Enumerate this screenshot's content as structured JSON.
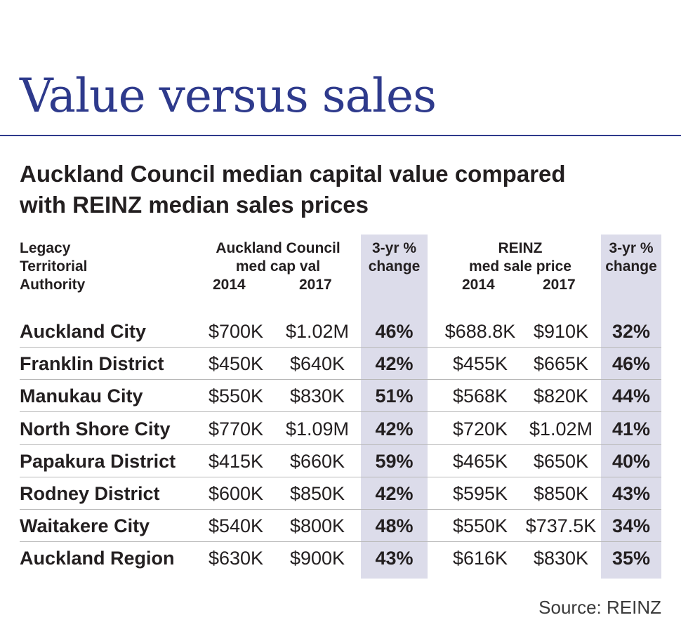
{
  "title": "Value versus sales",
  "subtitle_line1": "Auckland Council median capital value compared",
  "subtitle_line2": "with REINZ median sales prices",
  "header": {
    "authority_1": "Legacy",
    "authority_2": "Territorial",
    "authority_3": "Authority",
    "council_1": "Auckland Council",
    "council_2": "med cap val",
    "year_2014": "2014",
    "year_2017": "2017",
    "change_1": "3-yr %",
    "change_2": "change",
    "reinz_1": "REINZ",
    "reinz_2": "med sale price"
  },
  "accent_color": "#2e3a8c",
  "band_color": "#dcdcea",
  "chart_data": {
    "type": "table",
    "columns": [
      "Legacy Territorial Authority",
      "Auckland Council med cap val 2014",
      "Auckland Council med cap val 2017",
      "3-yr % change",
      "REINZ med sale price 2014",
      "REINZ med sale price 2017",
      "3-yr % change"
    ],
    "rows": [
      {
        "name": "Auckland City",
        "cv2014": "$700K",
        "cv2017": "$1.02M",
        "cv_change": "46%",
        "r2014": "$688.8K",
        "r2017": "$910K",
        "r_change": "32%"
      },
      {
        "name": "Franklin District",
        "cv2014": "$450K",
        "cv2017": "$640K",
        "cv_change": "42%",
        "r2014": "$455K",
        "r2017": "$665K",
        "r_change": "46%"
      },
      {
        "name": "Manukau City",
        "cv2014": "$550K",
        "cv2017": "$830K",
        "cv_change": "51%",
        "r2014": "$568K",
        "r2017": "$820K",
        "r_change": "44%"
      },
      {
        "name": "North Shore City",
        "cv2014": "$770K",
        "cv2017": "$1.09M",
        "cv_change": "42%",
        "r2014": "$720K",
        "r2017": "$1.02M",
        "r_change": "41%"
      },
      {
        "name": "Papakura District",
        "cv2014": "$415K",
        "cv2017": "$660K",
        "cv_change": "59%",
        "r2014": "$465K",
        "r2017": "$650K",
        "r_change": "40%"
      },
      {
        "name": "Rodney District",
        "cv2014": "$600K",
        "cv2017": "$850K",
        "cv_change": "42%",
        "r2014": "$595K",
        "r2017": "$850K",
        "r_change": "43%"
      },
      {
        "name": "Waitakere City",
        "cv2014": "$540K",
        "cv2017": "$800K",
        "cv_change": "48%",
        "r2014": "$550K",
        "r2017": "$737.5K",
        "r_change": "34%"
      },
      {
        "name": "Auckland Region",
        "cv2014": "$630K",
        "cv2017": "$900K",
        "cv_change": "43%",
        "r2014": "$616K",
        "r2017": "$830K",
        "r_change": "35%"
      }
    ]
  },
  "source": "Source: REINZ"
}
